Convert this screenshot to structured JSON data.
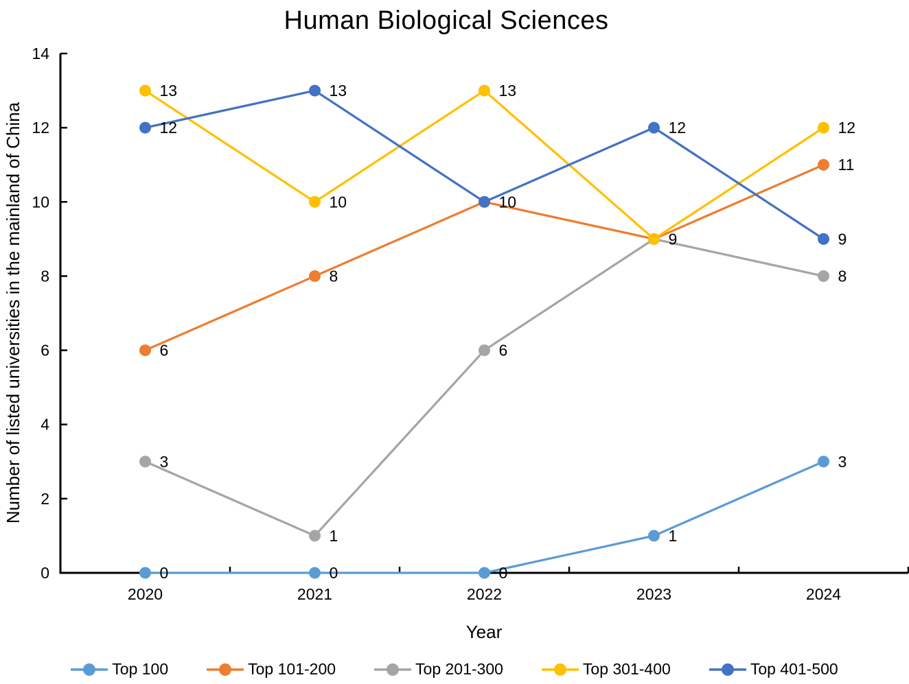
{
  "chart_data": {
    "type": "line",
    "title": "Human Biological Sciences",
    "xlabel": "Year",
    "ylabel": "Number of listed universities in the mainland of China",
    "categories": [
      "2020",
      "2021",
      "2022",
      "2023",
      "2024"
    ],
    "yticks": [
      0,
      2,
      4,
      6,
      8,
      10,
      12,
      14
    ],
    "ylim": [
      0,
      14
    ],
    "grid": false,
    "legend_position": "bottom",
    "data_labels": true,
    "marker": "circle",
    "axis_color": "#000000",
    "text_color": "#000000",
    "series": [
      {
        "name": "Top 100",
        "color": "#5B9BD5",
        "values": [
          0,
          0,
          0,
          1,
          3
        ]
      },
      {
        "name": "Top 101-200",
        "color": "#ED7D31",
        "values": [
          6,
          8,
          10,
          9,
          11
        ]
      },
      {
        "name": "Top 201-300",
        "color": "#A5A5A5",
        "values": [
          3,
          1,
          6,
          9,
          8
        ]
      },
      {
        "name": "Top 301-400",
        "color": "#FFC000",
        "values": [
          13,
          10,
          13,
          9,
          12
        ]
      },
      {
        "name": "Top 401-500",
        "color": "#4472C4",
        "values": [
          12,
          13,
          10,
          12,
          9
        ]
      }
    ]
  }
}
